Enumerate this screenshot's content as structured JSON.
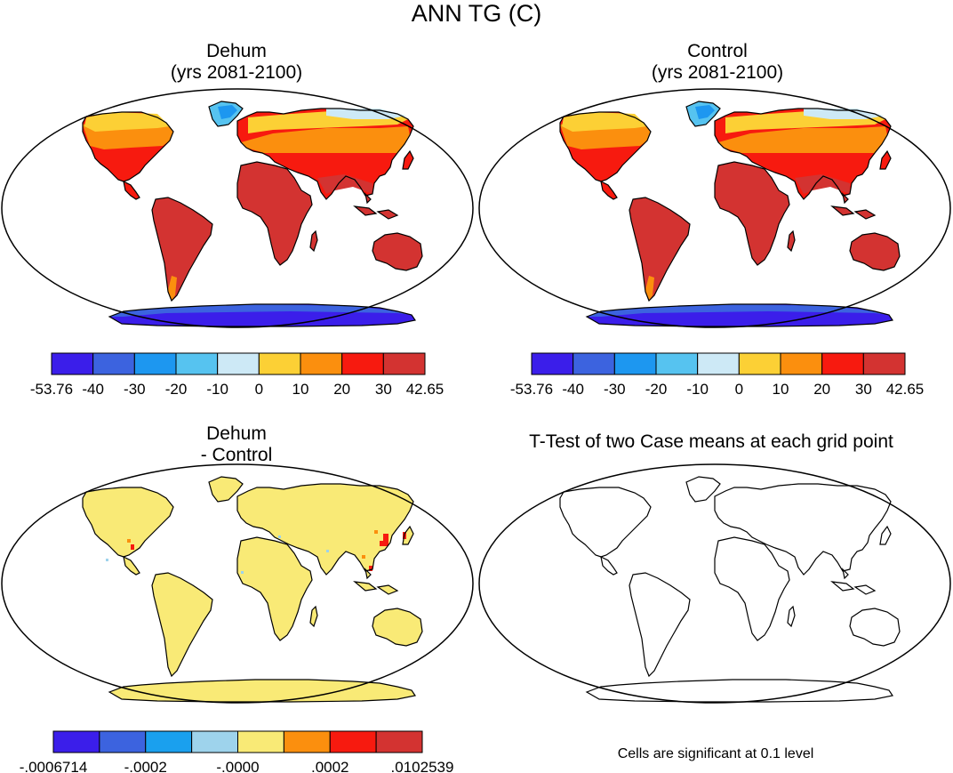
{
  "figure": {
    "main_title": "ANN TG (C)",
    "panels": [
      {
        "id": "dehum",
        "title_line1": "Dehum",
        "title_line2": "(yrs 2081-2100)"
      },
      {
        "id": "control",
        "title_line1": "Control",
        "title_line2": "(yrs 2081-2100)"
      },
      {
        "id": "diff",
        "title_line1": "Dehum",
        "title_line2": "- Control"
      },
      {
        "id": "ttest",
        "title": "T-Test of two Case means at each grid point"
      }
    ],
    "note": "Cells are significant at 0.1 level"
  },
  "colorbars": {
    "absolute": {
      "colors": [
        "#3b1eea",
        "#3c63df",
        "#1d97f0",
        "#56c3f0",
        "#cde9f6",
        "#fcd035",
        "#fb8f0e",
        "#f71a0f",
        "#d33331"
      ],
      "labels": [
        "-53.76",
        "-40",
        "-30",
        "-20",
        "-10",
        "0",
        "10",
        "20",
        "30",
        "42.65"
      ]
    },
    "difference": {
      "colors": [
        "#3b1eea",
        "#3c63df",
        "#1aa0ee",
        "#9ed3ec",
        "#f9ea76",
        "#fb8f0e",
        "#f71a0f",
        "#d33331"
      ],
      "labels": [
        ".0006714",
        ".0002",
        ".0000",
        ".0002",
        ".0102539"
      ],
      "label_prefixes": [
        "-",
        "-",
        "-",
        "",
        ""
      ]
    }
  },
  "chart_data": [
    {
      "type": "heatmap",
      "title": "Dehum (yrs 2081-2100)",
      "variable": "ANN TG (C)",
      "color_levels": [
        -53.76,
        -40,
        -30,
        -20,
        -10,
        0,
        10,
        20,
        30,
        42.65
      ]
    },
    {
      "type": "heatmap",
      "title": "Control (yrs 2081-2100)",
      "variable": "ANN TG (C)",
      "color_levels": [
        -53.76,
        -40,
        -30,
        -20,
        -10,
        0,
        10,
        20,
        30,
        42.65
      ]
    },
    {
      "type": "heatmap",
      "title": "Dehum - Control",
      "variable": "ANN TG (C)",
      "color_levels": [
        -0.0006714,
        -0.0002,
        -0.0,
        0.0002,
        0.0102539
      ]
    },
    {
      "type": "heatmap",
      "title": "T-Test of two Case means at each grid point",
      "significance_level": 0.1
    }
  ]
}
